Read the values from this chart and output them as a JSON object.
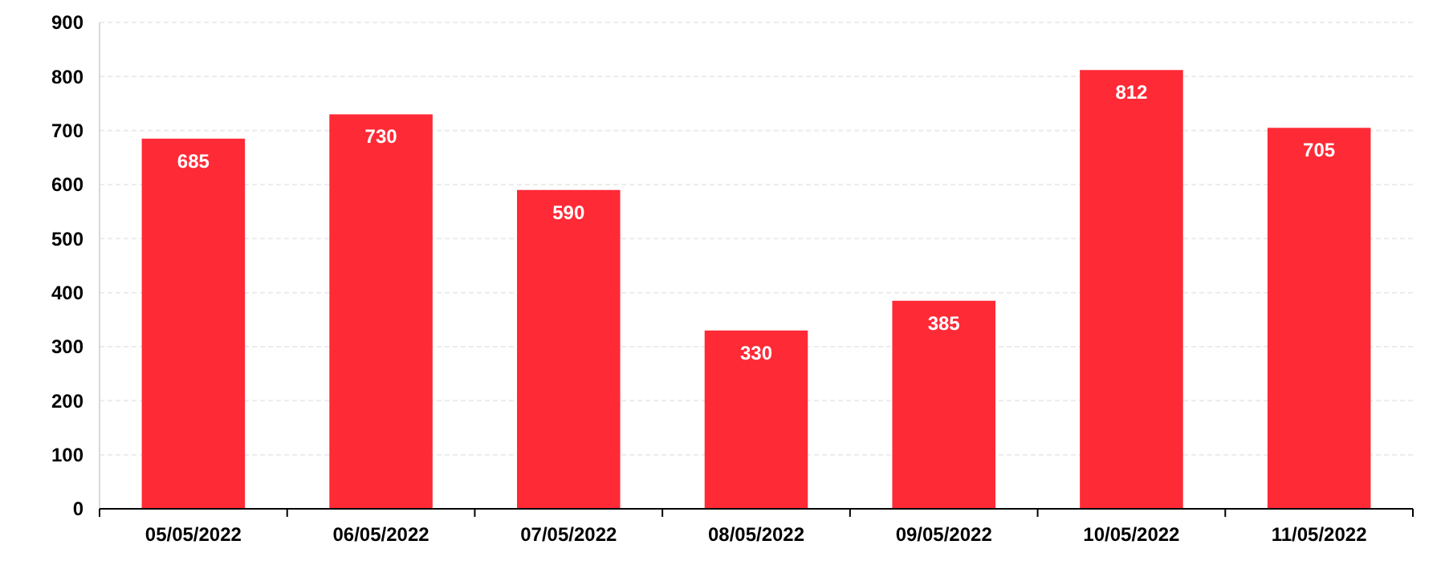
{
  "chart_data": {
    "type": "bar",
    "categories": [
      "05/05/2022",
      "06/05/2022",
      "07/05/2022",
      "08/05/2022",
      "09/05/2022",
      "10/05/2022",
      "11/05/2022"
    ],
    "values": [
      685,
      730,
      590,
      330,
      385,
      812,
      705
    ],
    "color": "#fe2a36",
    "ylim": [
      0,
      900
    ],
    "yticks": [
      0,
      100,
      200,
      300,
      400,
      500,
      600,
      700,
      800,
      900
    ],
    "grid": "y",
    "data_labels": true
  }
}
